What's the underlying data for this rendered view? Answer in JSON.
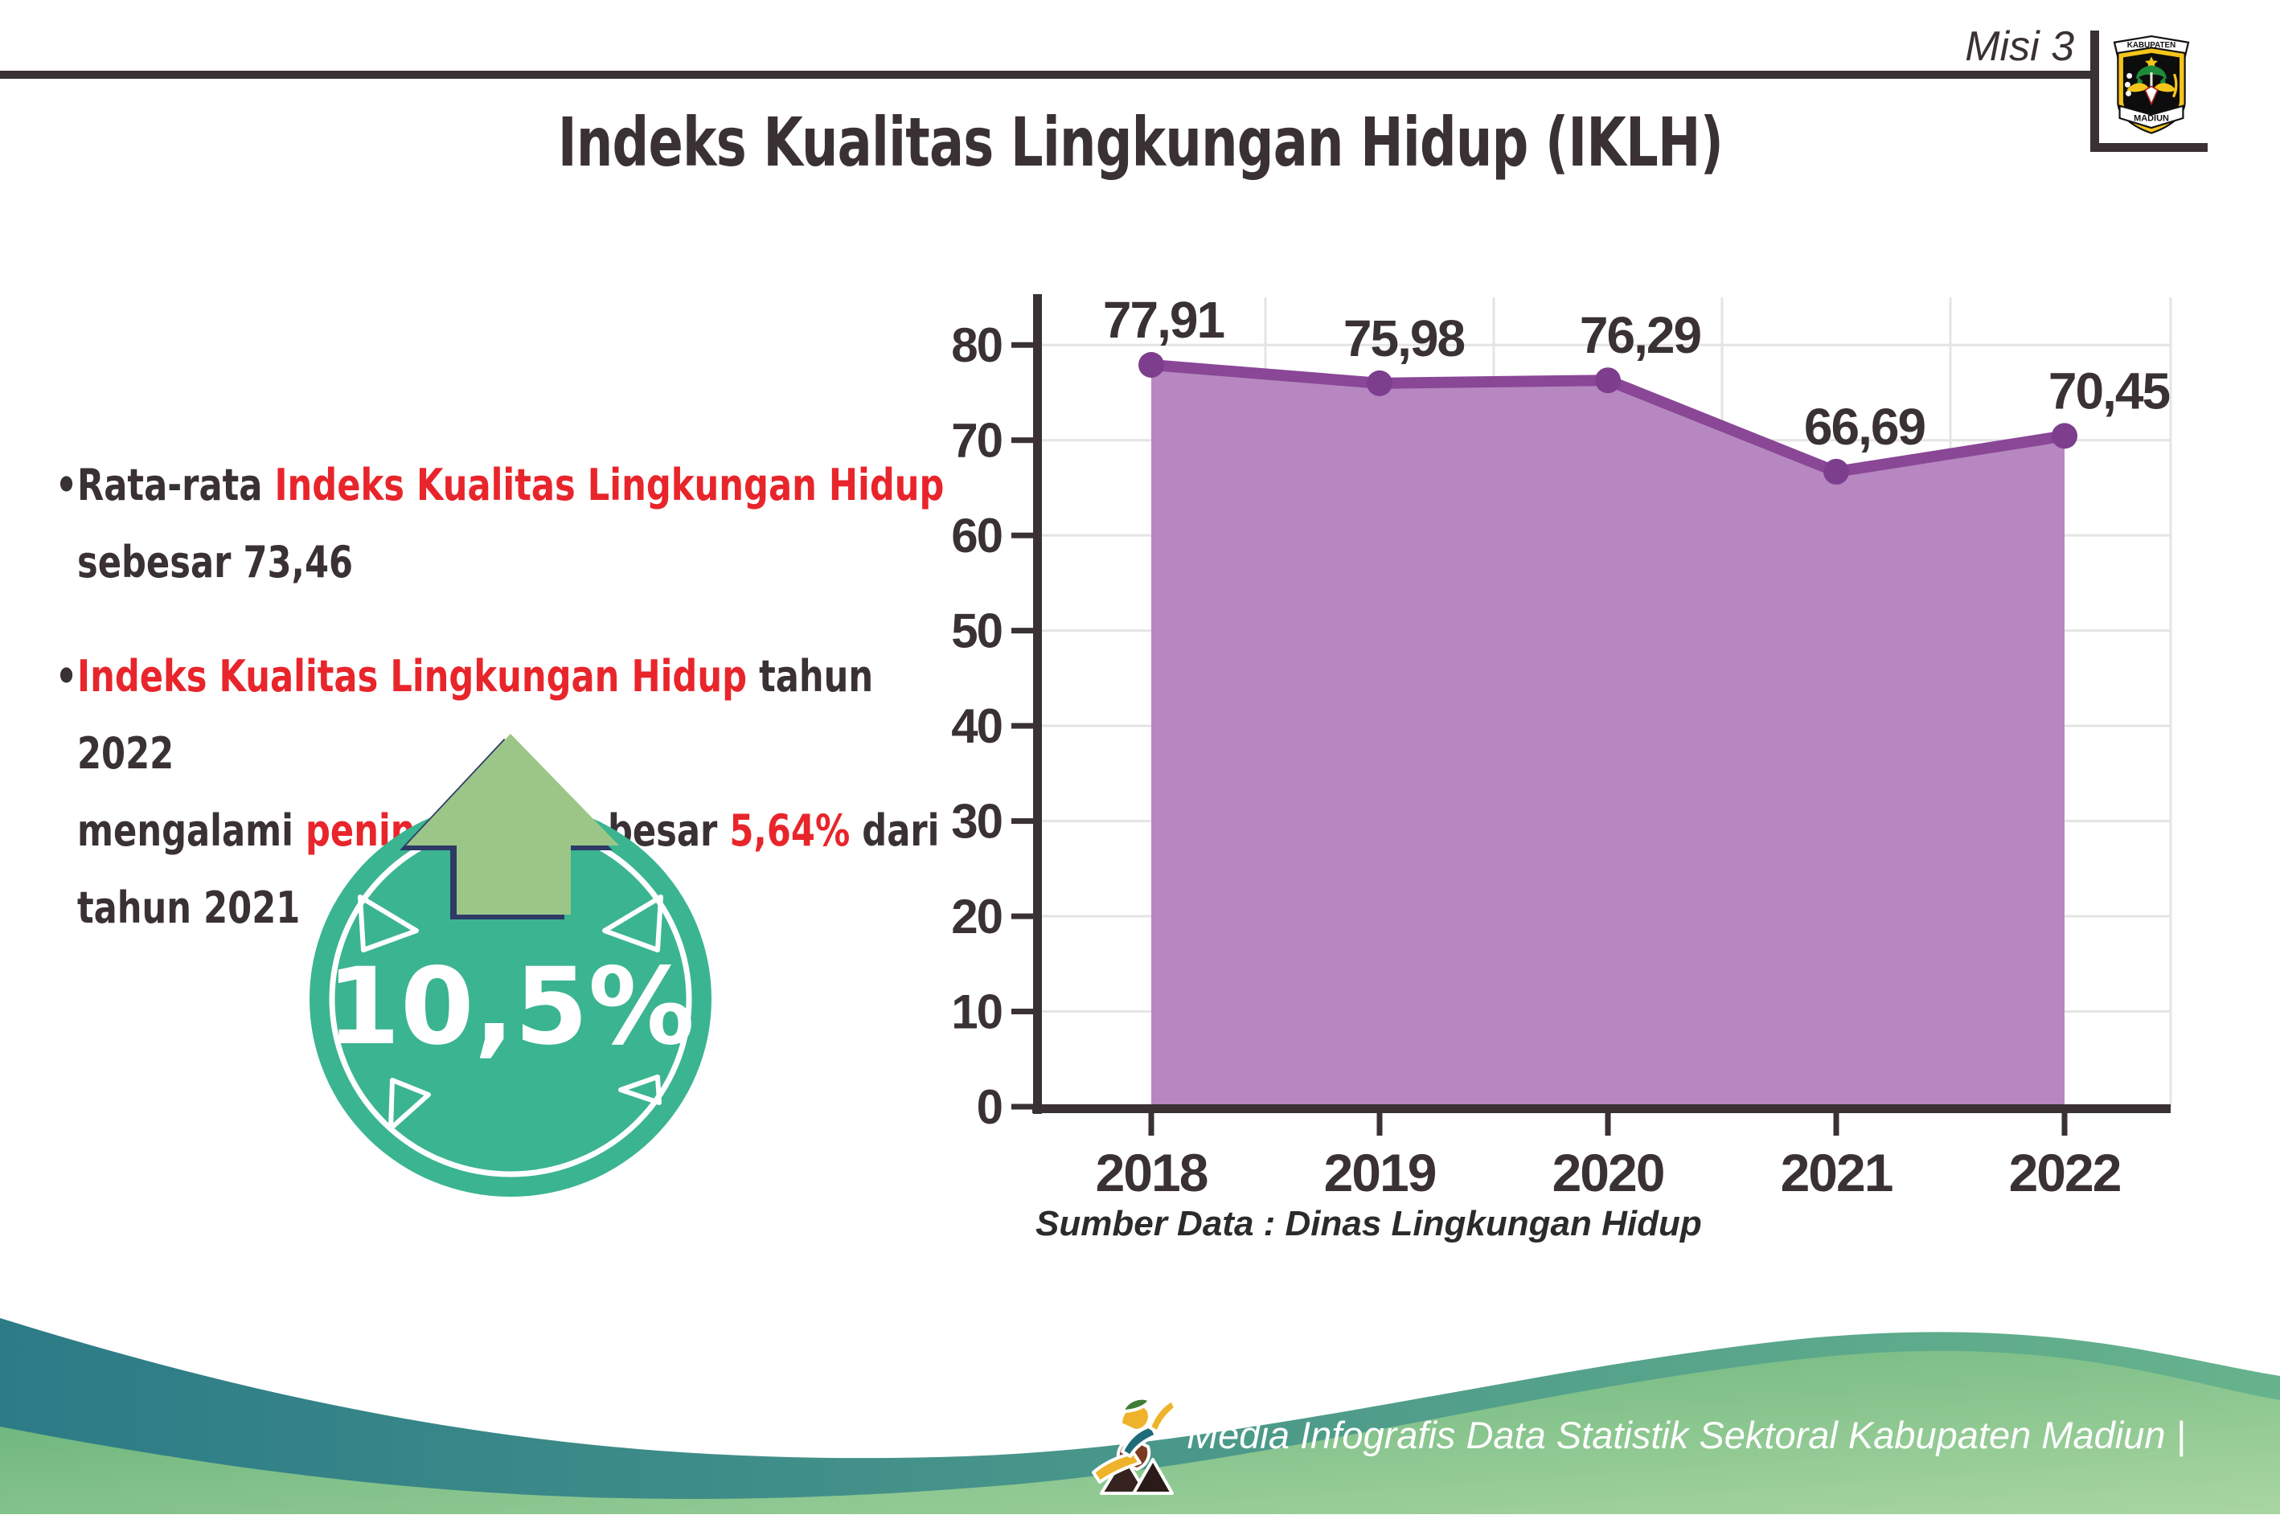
{
  "header": {
    "mission": "Misi 3",
    "title": "Indeks Kualitas Lingkungan Hidup (IKLH)",
    "logo_top": "KABUPATEN",
    "logo_bottom": "MADIUN"
  },
  "bullets": {
    "marker": "•",
    "b1_dark1": "Rata-rata ",
    "b1_red1": "Indeks Kualitas Lingkungan Hidup",
    "b1_line2": "sebesar 73,46",
    "b2_red1": "Indeks Kualitas Lingkungan Hidup",
    "b2_dark1": " tahun 2022",
    "b2_dark2": "mengalami ",
    "b2_red2": "peningkatan",
    "b2_dark3": " sebesar ",
    "b2_red3": "5,64%",
    "b2_dark4": " dari",
    "b2_line3": "tahun 2021"
  },
  "badge": {
    "value": "10,5%"
  },
  "chart_data": {
    "type": "area",
    "title": "Indeks Kualitas Lingkungan Hidup (IKLH) 2018-2022",
    "categories": [
      "2018",
      "2019",
      "2020",
      "2021",
      "2022"
    ],
    "values": [
      77.91,
      75.98,
      76.29,
      66.69,
      70.45
    ],
    "value_labels": [
      "77,91",
      "75,98",
      "76,29",
      "66,69",
      "70,45"
    ],
    "xlabel": "",
    "ylabel": "",
    "ylim": [
      0,
      85
    ],
    "yticks": [
      0,
      10,
      20,
      30,
      40,
      50,
      60,
      70,
      80
    ],
    "grid": true,
    "legend_position": "none",
    "area_color": "#b687c0",
    "line_color": "#8a4796",
    "marker_color": "#7c3e8d",
    "grid_color": "#e4e4e4",
    "axis_color": "#3a3134",
    "label_color": "#3a3134",
    "source": "Sumber Data : Dinas Lingkungan Hidup"
  },
  "footer": {
    "credit": "Media Infografis Data Statistik Sektoral Kabupaten Madiun |"
  },
  "theme": {
    "text_dark": "#3a3134",
    "accent_red": "#e8252b",
    "axis": "#3a3134",
    "badge_teal": "#3bb492",
    "arrow_green": "#9cc687",
    "arrow_outline": "#2d3a66",
    "wave_teal_1": "#2c7b87",
    "wave_teal_2": "#67b38d",
    "wave_green_1": "#5fae74",
    "wave_green_2": "#a9d6a2"
  }
}
